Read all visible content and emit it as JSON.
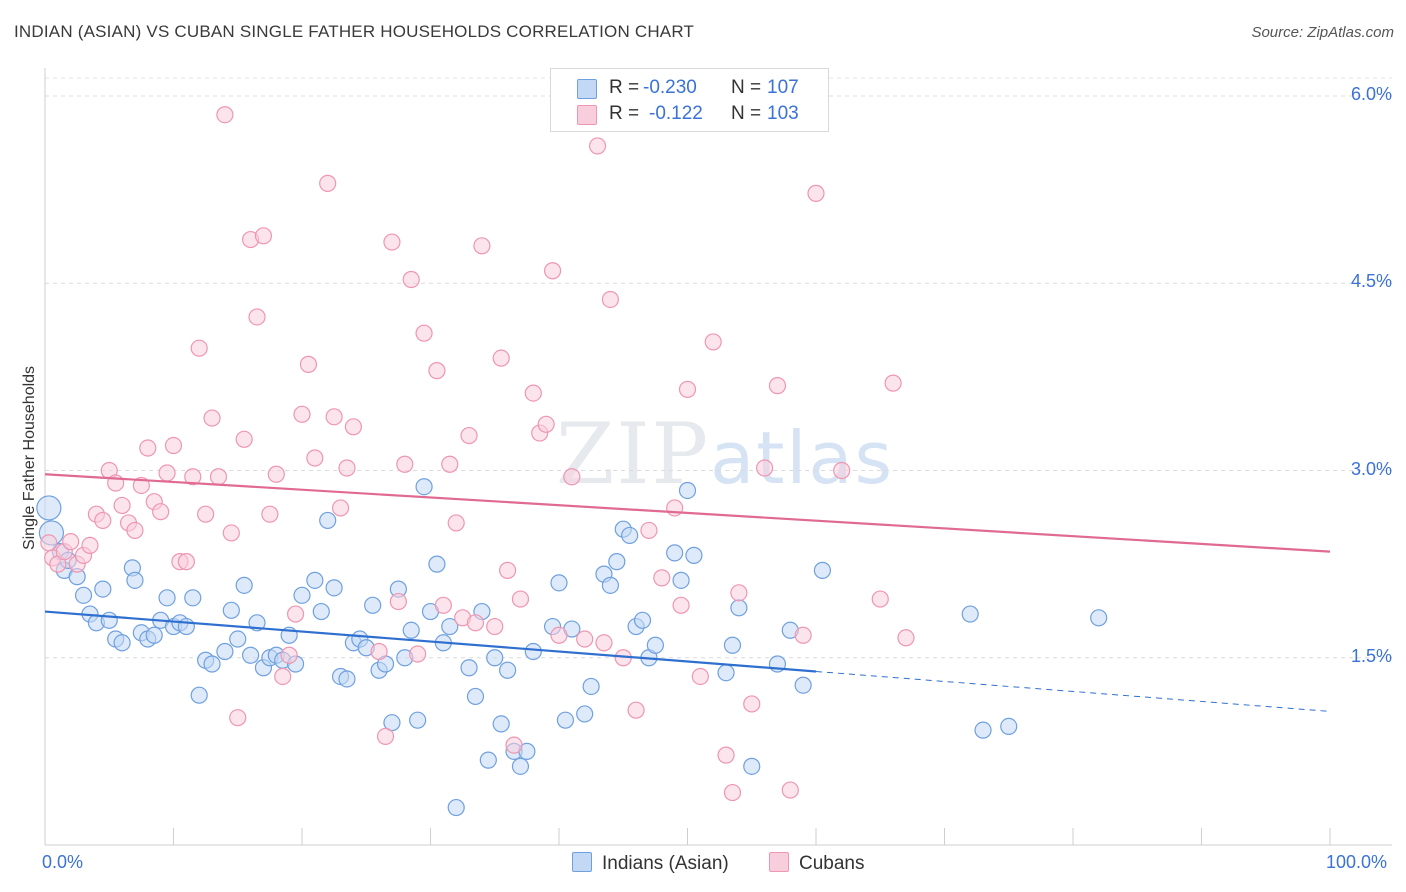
{
  "header": {
    "title": "INDIAN (ASIAN) VS CUBAN SINGLE FATHER HOUSEHOLDS CORRELATION CHART",
    "source": "Source: ZipAtlas.com"
  },
  "watermark": {
    "zip": "ZIP",
    "atlas": "atlas"
  },
  "legend": {
    "rows": [
      {
        "r_label": "R =",
        "r_value": "-0.230",
        "n_label": "N =",
        "n_value": "107",
        "color": "#a9c8f0"
      },
      {
        "r_label": "R =",
        "r_value": "-0.122",
        "n_label": "N =",
        "n_value": "103",
        "color": "#f6b9cb"
      }
    ]
  },
  "bottom_legend": [
    {
      "label": "Indians (Asian)",
      "color": "#a9c8f0"
    },
    {
      "label": "Cubans",
      "color": "#f6b9cb"
    }
  ],
  "chart_data": {
    "type": "scatter",
    "title": "INDIAN (ASIAN) VS CUBAN SINGLE FATHER HOUSEHOLDS CORRELATION CHART",
    "xlabel": "",
    "ylabel": "Single Father Households",
    "xlim": [
      0,
      100
    ],
    "ylim": [
      0,
      6.2
    ],
    "x_tick_labels": [
      "0.0%",
      "100.0%"
    ],
    "y_ticks": [
      1.5,
      3.0,
      4.5,
      6.0
    ],
    "y_tick_labels": [
      "1.5%",
      "3.0%",
      "4.5%",
      "6.0%"
    ],
    "grid": "horizontal dashed",
    "legend_position": "top-center",
    "series": [
      {
        "name": "Indians (Asian)",
        "color": "#6fa0e0",
        "fill": "#c2d8f4",
        "trend": {
          "x0": 0,
          "y0": 1.87,
          "x1": 60,
          "y1": 1.39,
          "dash_to_x": 100,
          "dash_to_y": 1.07
        },
        "points": [
          [
            0.3,
            2.7
          ],
          [
            0.5,
            2.5
          ],
          [
            1.2,
            2.35
          ],
          [
            1.5,
            2.2
          ],
          [
            1.8,
            2.28
          ],
          [
            2.5,
            2.15
          ],
          [
            3,
            2.0
          ],
          [
            3.5,
            1.85
          ],
          [
            4,
            1.78
          ],
          [
            4.5,
            2.05
          ],
          [
            5,
            1.8
          ],
          [
            5.5,
            1.65
          ],
          [
            6,
            1.62
          ],
          [
            6.8,
            2.22
          ],
          [
            7,
            2.12
          ],
          [
            7.5,
            1.7
          ],
          [
            8,
            1.65
          ],
          [
            8.5,
            1.68
          ],
          [
            9,
            1.8
          ],
          [
            9.5,
            1.98
          ],
          [
            10,
            1.75
          ],
          [
            10.5,
            1.78
          ],
          [
            11,
            1.75
          ],
          [
            11.5,
            1.98
          ],
          [
            12,
            1.2
          ],
          [
            12.5,
            1.48
          ],
          [
            13,
            1.45
          ],
          [
            14,
            1.55
          ],
          [
            14.5,
            1.88
          ],
          [
            15,
            1.65
          ],
          [
            15.5,
            2.08
          ],
          [
            16,
            1.52
          ],
          [
            16.5,
            1.78
          ],
          [
            17,
            1.42
          ],
          [
            17.5,
            1.5
          ],
          [
            18,
            1.52
          ],
          [
            18.5,
            1.48
          ],
          [
            19,
            1.68
          ],
          [
            19.5,
            1.45
          ],
          [
            20,
            2.0
          ],
          [
            21,
            2.12
          ],
          [
            21.5,
            1.87
          ],
          [
            22,
            2.6
          ],
          [
            22.5,
            2.06
          ],
          [
            23,
            1.35
          ],
          [
            23.5,
            1.33
          ],
          [
            24,
            1.62
          ],
          [
            24.5,
            1.65
          ],
          [
            25,
            1.58
          ],
          [
            25.5,
            1.92
          ],
          [
            26,
            1.4
          ],
          [
            26.5,
            1.45
          ],
          [
            27,
            0.98
          ],
          [
            27.5,
            2.05
          ],
          [
            28,
            1.5
          ],
          [
            28.5,
            1.72
          ],
          [
            29,
            1.0
          ],
          [
            29.5,
            2.87
          ],
          [
            30,
            1.87
          ],
          [
            30.5,
            2.25
          ],
          [
            31,
            1.62
          ],
          [
            31.5,
            1.75
          ],
          [
            32,
            0.3
          ],
          [
            33,
            1.42
          ],
          [
            33.5,
            1.19
          ],
          [
            34,
            1.87
          ],
          [
            34.5,
            0.68
          ],
          [
            35,
            1.5
          ],
          [
            35.5,
            0.97
          ],
          [
            36,
            1.4
          ],
          [
            36.5,
            0.75
          ],
          [
            37,
            0.63
          ],
          [
            37.5,
            0.75
          ],
          [
            38,
            1.55
          ],
          [
            39.5,
            1.75
          ],
          [
            40,
            2.1
          ],
          [
            40.5,
            1.0
          ],
          [
            41,
            1.73
          ],
          [
            42,
            1.05
          ],
          [
            42.5,
            1.27
          ],
          [
            43.5,
            2.17
          ],
          [
            44,
            2.08
          ],
          [
            44.5,
            2.27
          ],
          [
            45,
            2.53
          ],
          [
            45.5,
            2.48
          ],
          [
            46,
            1.75
          ],
          [
            46.5,
            1.8
          ],
          [
            47,
            1.5
          ],
          [
            47.5,
            1.6
          ],
          [
            49,
            2.34
          ],
          [
            49.5,
            2.12
          ],
          [
            50,
            2.84
          ],
          [
            50.5,
            2.32
          ],
          [
            53,
            1.38
          ],
          [
            53.5,
            1.6
          ],
          [
            54,
            1.9
          ],
          [
            55,
            0.63
          ],
          [
            57,
            1.45
          ],
          [
            58,
            1.72
          ],
          [
            59,
            1.28
          ],
          [
            60.5,
            2.2
          ],
          [
            72,
            1.85
          ],
          [
            73,
            0.92
          ],
          [
            75,
            0.95
          ],
          [
            82,
            1.82
          ]
        ]
      },
      {
        "name": "Cubans",
        "color": "#ef96b1",
        "fill": "#f9cedc",
        "trend": {
          "x0": 0,
          "y0": 2.97,
          "x1": 100,
          "y1": 2.35
        },
        "points": [
          [
            0.3,
            2.42
          ],
          [
            0.6,
            2.3
          ],
          [
            1,
            2.25
          ],
          [
            1.5,
            2.35
          ],
          [
            2,
            2.43
          ],
          [
            2.5,
            2.25
          ],
          [
            3,
            2.32
          ],
          [
            3.5,
            2.4
          ],
          [
            4,
            2.65
          ],
          [
            4.5,
            2.6
          ],
          [
            5,
            3.0
          ],
          [
            5.5,
            2.9
          ],
          [
            6,
            2.72
          ],
          [
            6.5,
            2.58
          ],
          [
            7,
            2.52
          ],
          [
            7.5,
            2.88
          ],
          [
            8,
            3.18
          ],
          [
            8.5,
            2.75
          ],
          [
            9,
            2.67
          ],
          [
            9.5,
            2.98
          ],
          [
            10,
            3.2
          ],
          [
            10.5,
            2.27
          ],
          [
            11,
            2.27
          ],
          [
            11.5,
            2.95
          ],
          [
            12,
            3.98
          ],
          [
            12.5,
            2.65
          ],
          [
            13,
            3.42
          ],
          [
            13.5,
            2.95
          ],
          [
            14,
            5.85
          ],
          [
            14.5,
            2.5
          ],
          [
            15,
            1.02
          ],
          [
            15.5,
            3.25
          ],
          [
            16,
            4.85
          ],
          [
            16.5,
            4.23
          ],
          [
            17,
            4.88
          ],
          [
            17.5,
            2.65
          ],
          [
            18,
            2.97
          ],
          [
            18.5,
            1.35
          ],
          [
            19,
            1.52
          ],
          [
            19.5,
            1.85
          ],
          [
            20,
            3.45
          ],
          [
            20.5,
            3.85
          ],
          [
            21,
            3.1
          ],
          [
            22,
            5.3
          ],
          [
            22.5,
            3.43
          ],
          [
            23,
            2.7
          ],
          [
            23.5,
            3.02
          ],
          [
            24,
            3.35
          ],
          [
            26,
            1.55
          ],
          [
            26.5,
            0.87
          ],
          [
            27,
            4.83
          ],
          [
            27.5,
            1.95
          ],
          [
            28,
            3.05
          ],
          [
            28.5,
            4.53
          ],
          [
            29,
            1.53
          ],
          [
            29.5,
            4.1
          ],
          [
            30.5,
            3.8
          ],
          [
            31,
            1.92
          ],
          [
            31.5,
            3.05
          ],
          [
            32,
            2.58
          ],
          [
            32.5,
            1.82
          ],
          [
            33,
            3.28
          ],
          [
            33.5,
            1.78
          ],
          [
            34,
            4.8
          ],
          [
            35,
            1.75
          ],
          [
            35.5,
            3.9
          ],
          [
            36,
            2.2
          ],
          [
            36.5,
            0.8
          ],
          [
            37,
            1.97
          ],
          [
            38,
            3.62
          ],
          [
            38.5,
            3.3
          ],
          [
            39,
            3.37
          ],
          [
            39.5,
            4.6
          ],
          [
            40,
            1.68
          ],
          [
            41,
            2.95
          ],
          [
            42,
            1.65
          ],
          [
            43,
            5.6
          ],
          [
            43.5,
            1.62
          ],
          [
            44,
            4.37
          ],
          [
            45,
            1.5
          ],
          [
            46,
            1.08
          ],
          [
            47,
            2.52
          ],
          [
            48,
            2.14
          ],
          [
            49,
            2.7
          ],
          [
            49.5,
            1.92
          ],
          [
            50,
            3.65
          ],
          [
            51,
            1.35
          ],
          [
            52,
            4.03
          ],
          [
            53,
            0.72
          ],
          [
            53.5,
            0.42
          ],
          [
            54,
            2.02
          ],
          [
            55,
            1.13
          ],
          [
            56,
            3.02
          ],
          [
            57,
            3.68
          ],
          [
            58,
            0.44
          ],
          [
            59,
            1.68
          ],
          [
            60,
            5.22
          ],
          [
            62,
            3.0
          ],
          [
            65,
            1.97
          ],
          [
            66,
            3.7
          ],
          [
            67,
            1.66
          ]
        ]
      }
    ]
  }
}
